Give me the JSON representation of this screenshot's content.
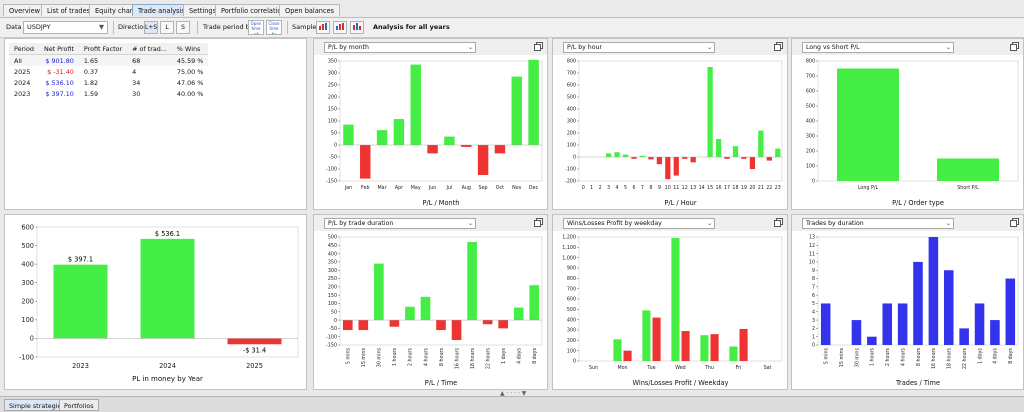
{
  "tabs": [
    {
      "label": "Overview",
      "active": false
    },
    {
      "label": "List of trades",
      "active": false
    },
    {
      "label": "Equity chart",
      "active": false
    },
    {
      "label": "Trade analysis",
      "active": true
    },
    {
      "label": "Settings",
      "active": false
    },
    {
      "label": "Portfolio correlation",
      "active": false
    },
    {
      "label": "Open balances",
      "active": false
    }
  ],
  "toolbar": {
    "data_label": "Data",
    "data_value": "USDJPY",
    "direction_label": "Direction",
    "direction_options": [
      "L+S",
      "L",
      "S"
    ],
    "trade_period_label": "Trade period by",
    "open_time": "Open time",
    "close_time": "Close time",
    "sample_label": "Sample",
    "analysis_label": "Analysis for all years"
  },
  "stats_table": {
    "headers": [
      "Period",
      "Net Profit",
      "Profit Factor",
      "# of trad...",
      "% Wins"
    ],
    "rows": [
      {
        "period": "All",
        "net": "$ 901.80",
        "pf": "1.65",
        "trades": "68",
        "wins": "45.59 %",
        "neg": false
      },
      {
        "period": "2025",
        "net": "$ -31.40",
        "pf": "0.37",
        "trades": "4",
        "wins": "75.00 %",
        "neg": true
      },
      {
        "period": "2024",
        "net": "$ 536.10",
        "pf": "1.82",
        "trades": "34",
        "wins": "47.06 %",
        "neg": false
      },
      {
        "period": "2023",
        "net": "$ 397.10",
        "pf": "1.59",
        "trades": "30",
        "wins": "40.00 %",
        "neg": false
      }
    ]
  },
  "colors": {
    "green": "#44ee44",
    "red": "#ee3333",
    "blue": "#3333ee",
    "text_blue": "#1a1adf",
    "text_red": "#d21c1c"
  },
  "charts": [
    {
      "dropdown": "P/L by month",
      "chart_data": {
        "type": "bar",
        "categories": [
          "Jan",
          "Feb",
          "Mar",
          "Apr",
          "May",
          "Jun",
          "Jul",
          "Aug",
          "Sep",
          "Oct",
          "Nov",
          "Dec"
        ],
        "values": [
          85,
          -140,
          62,
          108,
          335,
          -35,
          35,
          -8,
          -125,
          -35,
          285,
          355
        ],
        "ylim": [
          -150,
          350
        ],
        "yticks": [
          -150,
          -100,
          -50,
          0,
          50,
          100,
          150,
          200,
          250,
          300,
          350
        ],
        "xlabel": "P/L / Month",
        "color": "signed",
        "rotate": false
      }
    },
    {
      "dropdown": "P/L by hour",
      "chart_data": {
        "type": "bar",
        "categories": [
          "0",
          "1",
          "2",
          "3",
          "4",
          "5",
          "6",
          "7",
          "8",
          "9",
          "10",
          "11",
          "12",
          "13",
          "14",
          "15",
          "16",
          "17",
          "18",
          "19",
          "20",
          "21",
          "22",
          "23"
        ],
        "values": [
          0,
          0,
          0,
          30,
          40,
          20,
          -15,
          10,
          -20,
          -60,
          -185,
          -155,
          -15,
          -45,
          0,
          750,
          150,
          -15,
          90,
          -15,
          -100,
          220,
          -30,
          70
        ],
        "ylim": [
          -200,
          800
        ],
        "yticks": [
          -200,
          -100,
          0,
          100,
          200,
          300,
          400,
          500,
          600,
          700,
          800
        ],
        "xlabel": "P/L / Hour",
        "color": "signed",
        "rotate": false
      }
    },
    {
      "dropdown": "Long vs Short P/L",
      "chart_data": {
        "type": "bar",
        "categories": [
          "Long P/L",
          "Short P/L"
        ],
        "values": [
          750,
          150
        ],
        "ylim": [
          0,
          800
        ],
        "yticks": [
          0,
          100,
          200,
          300,
          400,
          500,
          600,
          700,
          800
        ],
        "xlabel": "P/L / Order type",
        "color": "green",
        "rotate": false
      }
    },
    {
      "dropdown": "",
      "chart_data": {
        "type": "bar",
        "categories": [
          "2023",
          "2024",
          "2025"
        ],
        "values": [
          397.1,
          536.1,
          -31.4
        ],
        "data_labels": [
          "$ 397.1",
          "$ 536.1",
          "-$ 31.4"
        ],
        "ylim": [
          -100,
          600
        ],
        "yticks": [
          -100,
          0,
          100,
          200,
          300,
          400,
          500,
          600
        ],
        "xlabel": "PL in money by Year",
        "color": "signed",
        "rotate": false
      }
    },
    {
      "dropdown": "P/L by trade duration",
      "chart_data": {
        "type": "bar",
        "categories": [
          "5 mins",
          "15 mins",
          "30 mins",
          "1 hours",
          "2 hours",
          "4 hours",
          "8 hours",
          "16 hours",
          "18 hours",
          "22 hours",
          "1 days",
          "4 days",
          "8 days"
        ],
        "values": [
          -60,
          -60,
          340,
          -40,
          80,
          140,
          -60,
          -120,
          470,
          -25,
          -50,
          75,
          210
        ],
        "ylim": [
          -150,
          500
        ],
        "yticks": [
          -150,
          -100,
          -50,
          0,
          50,
          100,
          150,
          200,
          250,
          300,
          350,
          400,
          450,
          500
        ],
        "xlabel": "P/L / Time",
        "color": "signed",
        "rotate": true
      }
    },
    {
      "dropdown": "Wins/Losses Profit by weekday",
      "chart_data": {
        "type": "grouped-bar",
        "categories": [
          "Sun",
          "Mon",
          "Tue",
          "Wed",
          "Thu",
          "Fri",
          "Sat"
        ],
        "series": [
          {
            "values": [
              0,
              210,
              490,
              1190,
              250,
              140,
              0
            ]
          },
          {
            "values": [
              0,
              100,
              420,
              290,
              260,
              310,
              0
            ]
          }
        ],
        "ylim": [
          0,
          1200
        ],
        "yticks": [
          0,
          100,
          200,
          300,
          400,
          500,
          600,
          700,
          800,
          900,
          1000,
          1100,
          1200
        ],
        "ytick_labels": [
          "0",
          "100",
          "200",
          "300",
          "400",
          "500",
          "600",
          "700",
          "800",
          "900",
          "1,000",
          "1,100",
          "1,200"
        ],
        "xlabel": "Wins/Losses Profit / Weekday"
      }
    },
    {
      "dropdown": "Trades by duration",
      "chart_data": {
        "type": "bar",
        "categories": [
          "5 mins",
          "15 mins",
          "30 mins",
          "1 hours",
          "2 hours",
          "4 hours",
          "8 hours",
          "16 hours",
          "18 hours",
          "22 hours",
          "1 days",
          "4 days",
          "8 days"
        ],
        "values": [
          5,
          0,
          3,
          1,
          5,
          5,
          10,
          13,
          9,
          2,
          5,
          3,
          8
        ],
        "ylim": [
          0,
          13
        ],
        "yticks": [
          0,
          1,
          2,
          3,
          4,
          5,
          6,
          7,
          8,
          9,
          10,
          11,
          12,
          13
        ],
        "xlabel": "Trades / Time",
        "color": "blue",
        "rotate": true
      }
    }
  ],
  "bottom_tabs": [
    {
      "label": "Simple strategies",
      "active": true
    },
    {
      "label": "Portfolios",
      "active": false
    }
  ]
}
